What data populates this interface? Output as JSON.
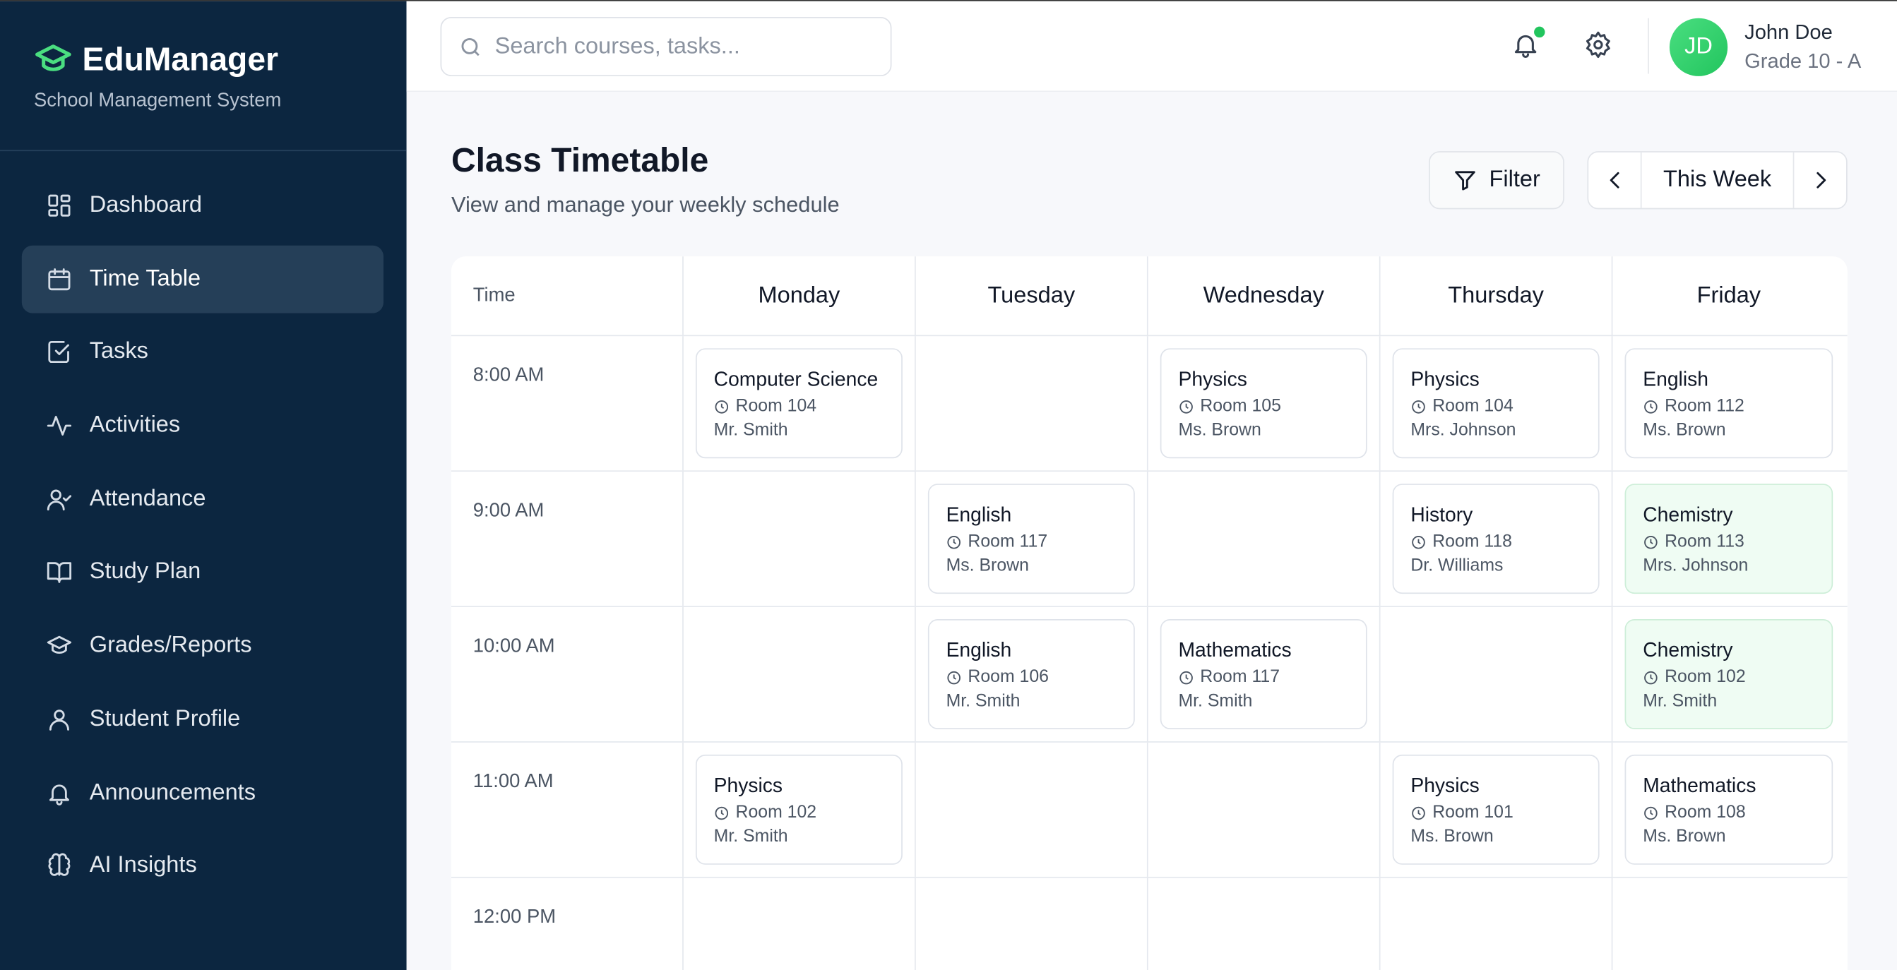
{
  "brand": {
    "name": "EduManager",
    "subtitle": "School Management System",
    "accent": "#4ade80"
  },
  "sidebar": {
    "items": [
      {
        "label": "Dashboard",
        "icon": "dashboard-icon"
      },
      {
        "label": "Time Table",
        "icon": "calendar-icon",
        "active": true
      },
      {
        "label": "Tasks",
        "icon": "checkbox-icon"
      },
      {
        "label": "Activities",
        "icon": "activity-icon"
      },
      {
        "label": "Attendance",
        "icon": "user-check-icon"
      },
      {
        "label": "Study Plan",
        "icon": "book-icon"
      },
      {
        "label": "Grades/Reports",
        "icon": "graduation-cap-icon"
      },
      {
        "label": "Student Profile",
        "icon": "user-icon"
      },
      {
        "label": "Announcements",
        "icon": "bell-icon"
      },
      {
        "label": "AI Insights",
        "icon": "brain-icon"
      }
    ]
  },
  "header": {
    "search_placeholder": "Search courses, tasks...",
    "user": {
      "initials": "JD",
      "name": "John Doe",
      "grade": "Grade 10 - A"
    }
  },
  "page": {
    "title": "Class Timetable",
    "subtitle": "View and manage your weekly schedule",
    "filter_label": "Filter",
    "week_label": "This Week"
  },
  "timetable": {
    "time_header": "Time",
    "days": [
      "Monday",
      "Tuesday",
      "Wednesday",
      "Thursday",
      "Friday"
    ],
    "rows": [
      {
        "time": "8:00 AM",
        "slots": [
          {
            "subject": "Computer Science",
            "room": "Room 104",
            "teacher": "Mr. Smith"
          },
          null,
          {
            "subject": "Physics",
            "room": "Room 105",
            "teacher": "Ms. Brown"
          },
          {
            "subject": "Physics",
            "room": "Room 104",
            "teacher": "Mrs. Johnson"
          },
          {
            "subject": "English",
            "room": "Room 112",
            "teacher": "Ms. Brown"
          }
        ]
      },
      {
        "time": "9:00 AM",
        "slots": [
          null,
          {
            "subject": "English",
            "room": "Room 117",
            "teacher": "Ms. Brown"
          },
          null,
          {
            "subject": "History",
            "room": "Room 118",
            "teacher": "Dr. Williams"
          },
          {
            "subject": "Chemistry",
            "room": "Room 113",
            "teacher": "Mrs. Johnson",
            "highlight": true
          }
        ]
      },
      {
        "time": "10:00 AM",
        "slots": [
          null,
          {
            "subject": "English",
            "room": "Room 106",
            "teacher": "Mr. Smith"
          },
          {
            "subject": "Mathematics",
            "room": "Room 117",
            "teacher": "Mr. Smith"
          },
          null,
          {
            "subject": "Chemistry",
            "room": "Room 102",
            "teacher": "Mr. Smith",
            "highlight": true
          }
        ]
      },
      {
        "time": "11:00 AM",
        "slots": [
          {
            "subject": "Physics",
            "room": "Room 102",
            "teacher": "Mr. Smith"
          },
          null,
          null,
          {
            "subject": "Physics",
            "room": "Room 101",
            "teacher": "Ms. Brown"
          },
          {
            "subject": "Mathematics",
            "room": "Room 108",
            "teacher": "Ms. Brown"
          }
        ]
      },
      {
        "time": "12:00 PM",
        "slots": [
          null,
          null,
          null,
          null,
          null
        ]
      }
    ]
  }
}
